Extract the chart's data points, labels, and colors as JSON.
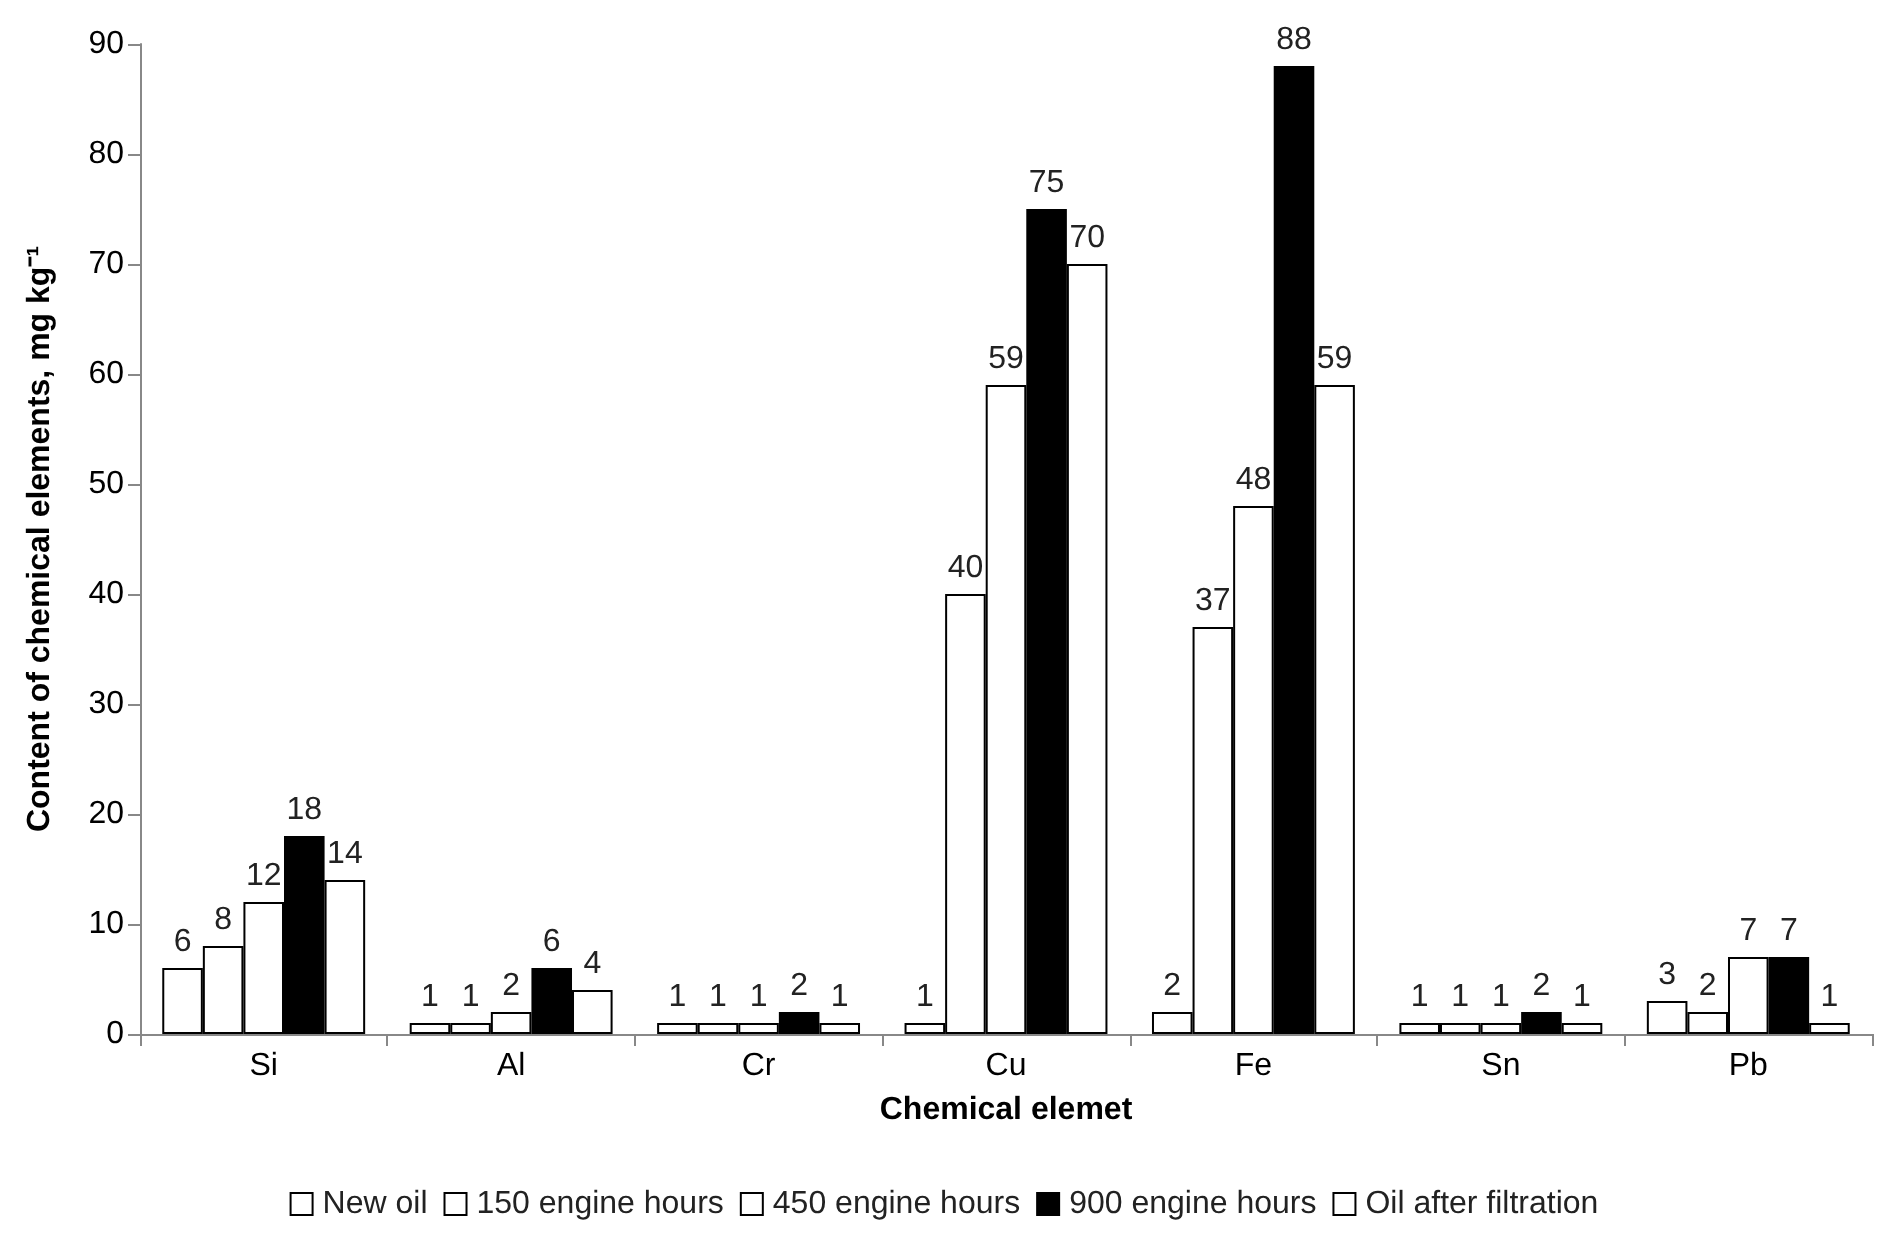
{
  "chart_data": {
    "type": "bar",
    "xlabel": "Chemical elemet",
    "ylabel": "Content of chemical elements, mg kg⁻¹",
    "categories": [
      "Si",
      "Al",
      "Cr",
      "Cu",
      "Fe",
      "Sn",
      "Pb"
    ],
    "series": [
      {
        "name": "New oil",
        "color": "#ffffff",
        "values": [
          6,
          1,
          1,
          1,
          2,
          1,
          3
        ]
      },
      {
        "name": "150 engine hours",
        "color": "#ffffff",
        "values": [
          8,
          1,
          1,
          40,
          37,
          1,
          2
        ]
      },
      {
        "name": "450 engine hours",
        "color": "#ffffff",
        "values": [
          12,
          2,
          1,
          59,
          48,
          1,
          7
        ]
      },
      {
        "name": "900 engine hours",
        "color": "#000000",
        "values": [
          18,
          6,
          2,
          75,
          88,
          2,
          7
        ]
      },
      {
        "name": "Oil after filtration",
        "color": "#ffffff",
        "values": [
          14,
          4,
          1,
          70,
          59,
          1,
          1
        ]
      }
    ],
    "ylim": [
      0,
      90
    ],
    "yticks": [
      0,
      10,
      20,
      30,
      40,
      50,
      60,
      70,
      80,
      90
    ],
    "grid": false,
    "legend": "bottom",
    "data_labels": true
  }
}
